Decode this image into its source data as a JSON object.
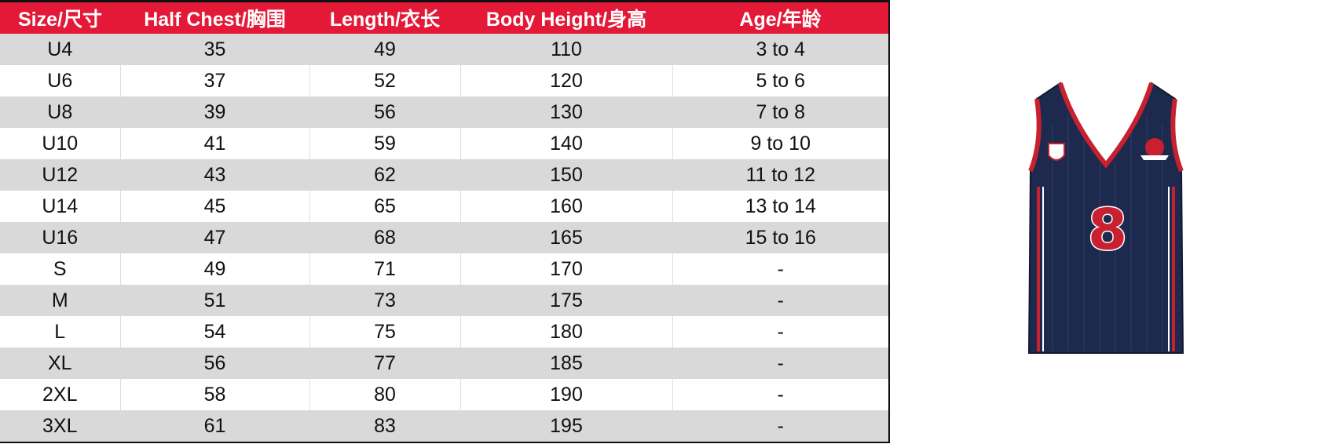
{
  "table": {
    "headers": [
      "Size/尺寸",
      "Half Chest/胸围",
      "Length/衣长",
      "Body Height/身高",
      "Age/年龄"
    ],
    "rows": [
      [
        "U4",
        35,
        49,
        110,
        "3 to 4"
      ],
      [
        "U6",
        37,
        52,
        120,
        "5 to 6"
      ],
      [
        "U8",
        39,
        56,
        130,
        "7 to 8"
      ],
      [
        "U10",
        41,
        59,
        140,
        "9 to 10"
      ],
      [
        "U12",
        43,
        62,
        150,
        "11 to 12"
      ],
      [
        "U14",
        45,
        65,
        160,
        "13 to 14"
      ],
      [
        "U16",
        47,
        68,
        165,
        "15 to 16"
      ],
      [
        "S",
        49,
        71,
        170,
        "-"
      ],
      [
        "M",
        51,
        73,
        175,
        "-"
      ],
      [
        "L",
        54,
        75,
        180,
        "-"
      ],
      [
        "XL",
        56,
        77,
        185,
        "-"
      ],
      [
        "2XL",
        58,
        80,
        190,
        "-"
      ],
      [
        "3XL",
        61,
        83,
        195,
        "-"
      ]
    ]
  },
  "jersey": {
    "number": "8"
  }
}
